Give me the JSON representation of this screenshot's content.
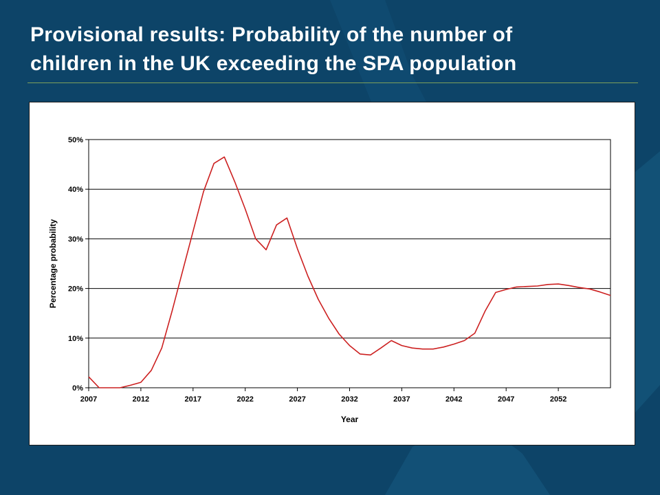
{
  "slide": {
    "title_line1": "Provisional results: Probability of the number of",
    "title_line2": "children in the UK exceeding the SPA population"
  },
  "colors": {
    "background": "#0d4468",
    "line": "#cc1f1f",
    "rule": "#7fa05a"
  },
  "chart_data": {
    "type": "line",
    "xlabel": "Year",
    "ylabel": "Percentage probability",
    "xlim": [
      2007,
      2057
    ],
    "ylim": [
      0,
      50
    ],
    "x_ticks": [
      2007,
      2012,
      2017,
      2022,
      2027,
      2032,
      2037,
      2042,
      2047,
      2052
    ],
    "y_ticks": [
      0,
      10,
      20,
      30,
      40,
      50
    ],
    "y_tick_labels": [
      "0%",
      "10%",
      "20%",
      "30%",
      "40%",
      "50%"
    ],
    "grid": "horizontal",
    "legend": "none",
    "series": [
      {
        "x": [
          2007,
          2008,
          2009,
          2010,
          2011,
          2012,
          2013,
          2014,
          2015,
          2016,
          2017,
          2018,
          2019,
          2020,
          2021,
          2022,
          2023,
          2024,
          2025,
          2026,
          2027,
          2028,
          2029,
          2030,
          2031,
          2032,
          2033,
          2034,
          2035,
          2036,
          2037,
          2038,
          2039,
          2040,
          2041,
          2042,
          2043,
          2044,
          2045,
          2046,
          2047,
          2048,
          2049,
          2050,
          2051,
          2052,
          2053,
          2054,
          2055,
          2056,
          2057
        ],
        "values": [
          2.2,
          0,
          0,
          0,
          0.5,
          1.1,
          3.5,
          8,
          15.5,
          23.5,
          31.5,
          39.5,
          45.2,
          46.5,
          41.5,
          36,
          30,
          27.8,
          32.8,
          34.2,
          28,
          22.5,
          17.8,
          14,
          10.8,
          8.5,
          6.8,
          6.6,
          8,
          9.5,
          8.5,
          8,
          7.8,
          7.8,
          8.2,
          8.8,
          9.5,
          11,
          15.5,
          19.2,
          19.8,
          20.3,
          20.4,
          20.5,
          20.8,
          20.9,
          20.6,
          20.2,
          19.9,
          19.3,
          18.6
        ]
      }
    ]
  }
}
